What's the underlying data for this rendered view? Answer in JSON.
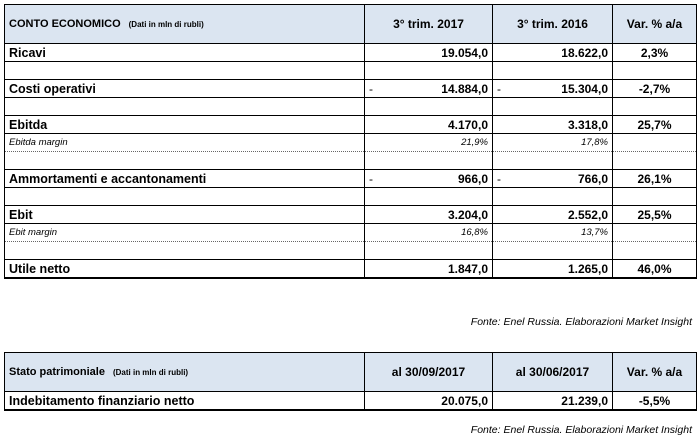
{
  "income": {
    "title": "CONTO ECONOMICO",
    "subtitle": "(Dati in mln di rubli)",
    "columns": [
      "3° trim. 2017",
      "3° trim. 2016",
      "Var. % a/a"
    ],
    "rows": [
      {
        "label": "Ricavi",
        "v2017": "19.054,0",
        "v2016": "18.622,0",
        "var": "2,3%"
      },
      {
        "label": "Costi operativi",
        "v2017": "14.884,0",
        "v2016": "15.304,0",
        "var": "-2,7%",
        "m2017": "-",
        "m2016": "-"
      },
      {
        "label": "Ebitda",
        "v2017": "4.170,0",
        "v2016": "3.318,0",
        "var": "25,7%"
      },
      {
        "label": "Ebitda margin",
        "v2017": "21,9%",
        "v2016": "17,8%"
      },
      {
        "label": "Ammortamenti e accantonamenti",
        "v2017": "966,0",
        "v2016": "766,0",
        "var": "26,1%",
        "m2017": "-",
        "m2016": "-"
      },
      {
        "label": "Ebit",
        "v2017": "3.204,0",
        "v2016": "2.552,0",
        "var": "25,5%"
      },
      {
        "label": "Ebit margin",
        "v2017": "16,8%",
        "v2016": "13,7%"
      },
      {
        "label": "Utile netto",
        "v2017": "1.847,0",
        "v2016": "1.265,0",
        "var": "46,0%"
      }
    ],
    "source": "Fonte: Enel Russia. Elaborazioni Market Insight"
  },
  "balance": {
    "title": "Stato patrimoniale",
    "subtitle": "(Dati in mln di rubli)",
    "columns": [
      "al 30/09/2017",
      "al 30/06/2017",
      "Var. % a/a"
    ],
    "rows": [
      {
        "label": "Indebitamento finanziario netto",
        "v1": "20.075,0",
        "v2": "21.239,0",
        "var": "-5,5%"
      }
    ],
    "source": "Fonte: Enel Russia. Elaborazioni Market Insight"
  }
}
